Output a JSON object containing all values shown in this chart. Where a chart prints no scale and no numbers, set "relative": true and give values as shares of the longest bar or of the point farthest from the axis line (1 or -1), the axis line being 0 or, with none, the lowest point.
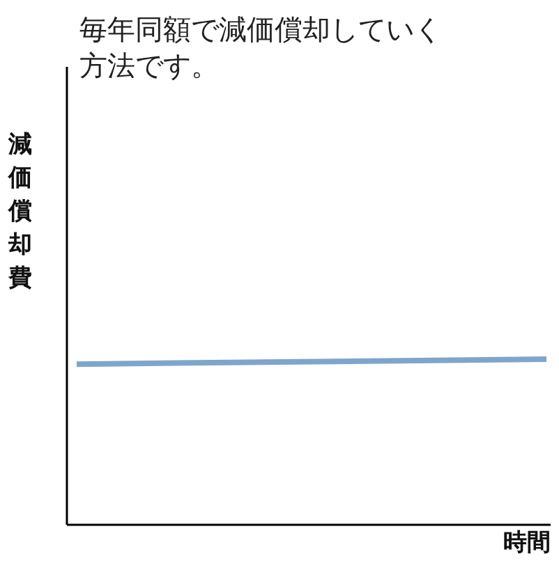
{
  "chart_data": {
    "type": "line",
    "title": "毎年同額で減価償却していく方法です。",
    "ylabel": "減価償却費",
    "xlabel": "時間",
    "categories": [
      null,
      null
    ],
    "values": [
      0.97,
      1
    ],
    "color": "#7ea6cd",
    "relative": true
  }
}
